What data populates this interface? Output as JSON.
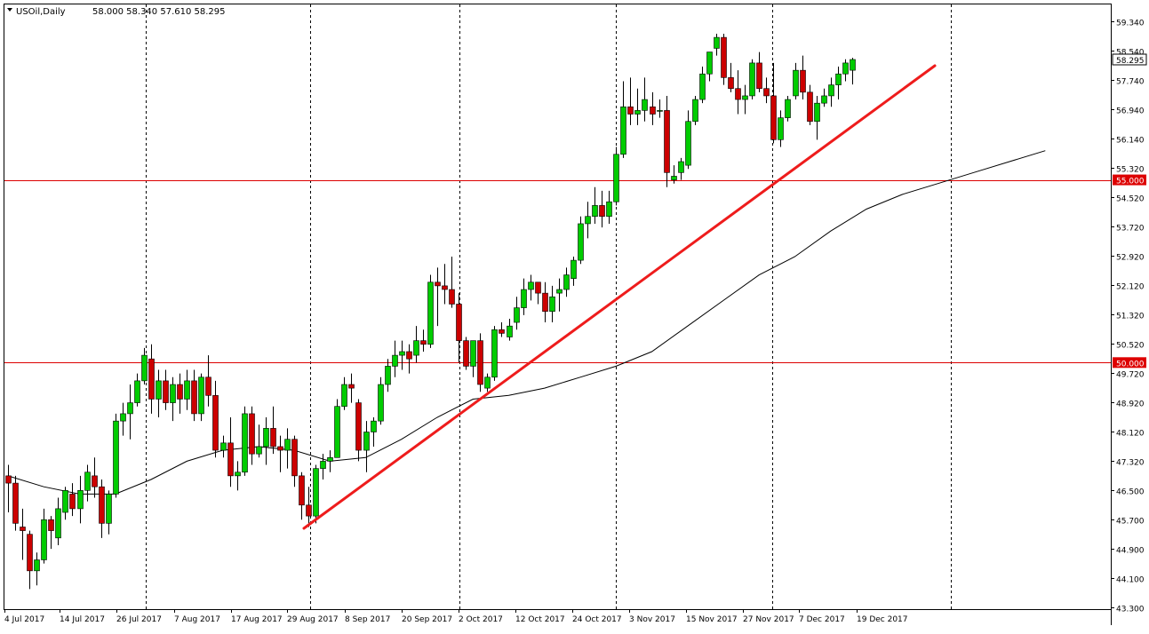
{
  "header": {
    "symbol": "USOil",
    "timeframe": "Daily",
    "ohlc_text": "58.000 58.340 57.610 58.295"
  },
  "colors": {
    "background": "#ffffff",
    "bull_candle": "#00cc00",
    "bear_candle": "#cc0000",
    "wick": "#000000",
    "trendline": "#ee1c1c",
    "horizontal_level": "#dd0000",
    "moving_average": "#000000",
    "axis_text": "#000000",
    "price_tag_bg": "#ffffff",
    "level_tag_bg": "#dd0000",
    "level_tag_text": "#ffffff"
  },
  "chart_data": {
    "type": "candlestick",
    "title": "USOil,Daily",
    "ylim": [
      43.3,
      59.6
    ],
    "y_ticks": [
      "59.340",
      "58.540",
      "57.740",
      "56.940",
      "56.140",
      "55.320",
      "54.520",
      "53.720",
      "52.920",
      "52.120",
      "51.320",
      "50.520",
      "49.720",
      "48.920",
      "48.120",
      "47.320",
      "46.500",
      "45.700",
      "44.900",
      "44.100",
      "43.300"
    ],
    "x_ticks": [
      {
        "label": "4 Jul 2017",
        "bar": 0
      },
      {
        "label": "14 Jul 2017",
        "bar": 10
      },
      {
        "label": "26 Jul 2017",
        "bar": 20
      },
      {
        "label": "7 Aug 2017",
        "bar": 30
      },
      {
        "label": "17 Aug 2017",
        "bar": 40
      },
      {
        "label": "29 Aug 2017",
        "bar": 50
      },
      {
        "label": "8 Sep 2017",
        "bar": 60
      },
      {
        "label": "20 Sep 2017",
        "bar": 70
      },
      {
        "label": "2 Oct 2017",
        "bar": 80
      },
      {
        "label": "12 Oct 2017",
        "bar": 90
      },
      {
        "label": "24 Oct 2017",
        "bar": 100
      },
      {
        "label": "3 Nov 2017",
        "bar": 110
      },
      {
        "label": "15 Nov 2017",
        "bar": 120
      },
      {
        "label": "27 Nov 2017",
        "bar": 130
      },
      {
        "label": "7 Dec 2017",
        "bar": 140
      },
      {
        "label": "19 Dec 2017",
        "bar": 150
      }
    ],
    "period_separators": [
      21,
      44,
      66,
      87,
      109,
      131
    ],
    "candles": [
      [
        46.9,
        47.2,
        45.9,
        46.7
      ],
      [
        46.7,
        46.9,
        45.4,
        45.6
      ],
      [
        45.5,
        46.0,
        44.6,
        45.4
      ],
      [
        45.3,
        45.4,
        43.8,
        44.3
      ],
      [
        44.3,
        44.8,
        43.9,
        44.6
      ],
      [
        44.6,
        46.0,
        44.5,
        45.7
      ],
      [
        45.7,
        45.8,
        44.9,
        45.4
      ],
      [
        45.2,
        46.3,
        45.0,
        46.0
      ],
      [
        45.9,
        46.6,
        45.7,
        46.5
      ],
      [
        46.4,
        46.7,
        45.8,
        46.0
      ],
      [
        46.0,
        46.9,
        45.6,
        46.5
      ],
      [
        46.5,
        47.2,
        46.2,
        47.0
      ],
      [
        46.9,
        47.4,
        46.3,
        46.6
      ],
      [
        46.6,
        46.8,
        45.2,
        45.6
      ],
      [
        45.6,
        46.5,
        45.3,
        46.4
      ],
      [
        46.4,
        48.6,
        46.3,
        48.4
      ],
      [
        48.4,
        48.9,
        48.0,
        48.6
      ],
      [
        48.6,
        49.4,
        47.9,
        48.9
      ],
      [
        48.9,
        49.7,
        48.8,
        49.5
      ],
      [
        49.5,
        50.4,
        49.4,
        50.2
      ],
      [
        50.1,
        50.5,
        48.6,
        49.0
      ],
      [
        49.0,
        49.8,
        48.5,
        49.5
      ],
      [
        49.5,
        49.8,
        48.7,
        48.9
      ],
      [
        48.9,
        49.6,
        48.4,
        49.4
      ],
      [
        49.4,
        49.7,
        48.6,
        49.0
      ],
      [
        49.0,
        49.8,
        48.7,
        49.5
      ],
      [
        49.5,
        49.8,
        48.4,
        48.6
      ],
      [
        48.6,
        49.7,
        48.4,
        49.6
      ],
      [
        49.6,
        50.2,
        48.8,
        49.1
      ],
      [
        49.1,
        49.5,
        47.4,
        47.6
      ],
      [
        47.6,
        48.0,
        47.4,
        47.8
      ],
      [
        47.8,
        48.5,
        46.6,
        46.9
      ],
      [
        46.9,
        47.3,
        46.5,
        47.0
      ],
      [
        47.0,
        48.8,
        46.9,
        48.6
      ],
      [
        48.6,
        48.8,
        47.2,
        47.5
      ],
      [
        47.5,
        48.3,
        47.4,
        47.7
      ],
      [
        47.7,
        48.5,
        47.2,
        48.2
      ],
      [
        48.2,
        48.8,
        47.5,
        47.7
      ],
      [
        47.7,
        48.0,
        47.0,
        47.6
      ],
      [
        47.6,
        48.2,
        47.1,
        47.9
      ],
      [
        47.9,
        48.0,
        46.6,
        46.9
      ],
      [
        46.9,
        47.0,
        45.7,
        46.1
      ],
      [
        46.1,
        46.6,
        45.5,
        45.8
      ],
      [
        45.8,
        47.2,
        45.6,
        47.1
      ],
      [
        47.1,
        47.5,
        46.8,
        47.3
      ],
      [
        47.3,
        47.6,
        47.0,
        47.4
      ],
      [
        47.4,
        49.0,
        47.4,
        48.8
      ],
      [
        48.8,
        49.6,
        48.7,
        49.4
      ],
      [
        49.4,
        49.7,
        48.9,
        49.3
      ],
      [
        48.9,
        49.0,
        47.3,
        47.6
      ],
      [
        47.6,
        48.4,
        47.0,
        48.1
      ],
      [
        48.1,
        48.5,
        47.7,
        48.4
      ],
      [
        48.4,
        49.6,
        48.3,
        49.4
      ],
      [
        49.4,
        50.1,
        49.2,
        49.9
      ],
      [
        49.9,
        50.6,
        49.6,
        50.2
      ],
      [
        50.2,
        50.6,
        49.8,
        50.3
      ],
      [
        50.3,
        50.5,
        49.7,
        50.1
      ],
      [
        50.2,
        51.0,
        50.0,
        50.6
      ],
      [
        50.6,
        50.9,
        50.3,
        50.5
      ],
      [
        50.5,
        52.4,
        50.4,
        52.2
      ],
      [
        52.2,
        52.6,
        51.0,
        52.1
      ],
      [
        52.1,
        52.7,
        51.6,
        52.0
      ],
      [
        52.0,
        52.9,
        51.5,
        51.6
      ],
      [
        51.6,
        51.9,
        50.0,
        50.6
      ],
      [
        50.6,
        50.7,
        49.8,
        49.9
      ],
      [
        49.9,
        50.6,
        49.6,
        50.6
      ],
      [
        50.6,
        50.8,
        49.2,
        49.4
      ],
      [
        49.3,
        49.7,
        49.2,
        49.6
      ],
      [
        49.6,
        51.0,
        49.5,
        50.9
      ],
      [
        50.9,
        51.1,
        50.7,
        50.8
      ],
      [
        50.7,
        51.2,
        50.6,
        51.0
      ],
      [
        51.1,
        51.8,
        50.9,
        51.5
      ],
      [
        51.5,
        52.3,
        51.3,
        52.0
      ],
      [
        52.0,
        52.4,
        51.7,
        52.2
      ],
      [
        52.2,
        52.2,
        51.6,
        51.9
      ],
      [
        51.9,
        52.2,
        51.1,
        51.4
      ],
      [
        51.4,
        52.1,
        51.1,
        51.8
      ],
      [
        51.9,
        52.3,
        51.4,
        52.0
      ],
      [
        52.0,
        52.6,
        51.8,
        52.4
      ],
      [
        52.3,
        52.9,
        52.1,
        52.8
      ],
      [
        52.8,
        54.0,
        52.7,
        53.8
      ],
      [
        53.8,
        54.4,
        53.4,
        54.0
      ],
      [
        54.0,
        54.8,
        53.8,
        54.3
      ],
      [
        54.3,
        54.7,
        53.7,
        54.0
      ],
      [
        54.0,
        54.7,
        53.8,
        54.4
      ],
      [
        54.4,
        55.9,
        54.3,
        55.7
      ],
      [
        55.7,
        57.7,
        55.6,
        57.0
      ],
      [
        57.0,
        57.8,
        56.5,
        56.8
      ],
      [
        56.8,
        57.5,
        56.5,
        56.9
      ],
      [
        56.9,
        57.8,
        56.6,
        57.2
      ],
      [
        57.0,
        57.4,
        56.5,
        56.8
      ],
      [
        56.9,
        57.2,
        56.7,
        56.9
      ],
      [
        56.9,
        57.3,
        54.8,
        55.2
      ],
      [
        55.0,
        55.4,
        54.9,
        55.1
      ],
      [
        55.2,
        55.6,
        55.0,
        55.5
      ],
      [
        55.4,
        56.9,
        55.3,
        56.6
      ],
      [
        56.6,
        57.3,
        56.5,
        57.2
      ],
      [
        57.2,
        58.1,
        57.1,
        57.9
      ],
      [
        57.9,
        58.5,
        57.7,
        58.5
      ],
      [
        58.6,
        59.0,
        58.4,
        58.9
      ],
      [
        58.9,
        59.0,
        57.6,
        57.8
      ],
      [
        57.8,
        58.2,
        57.4,
        57.5
      ],
      [
        57.5,
        58.0,
        56.8,
        57.2
      ],
      [
        57.2,
        57.6,
        56.8,
        57.3
      ],
      [
        57.3,
        58.3,
        57.2,
        58.2
      ],
      [
        58.2,
        58.5,
        57.4,
        57.5
      ],
      [
        57.5,
        57.8,
        57.1,
        57.3
      ],
      [
        57.3,
        58.2,
        56.0,
        56.1
      ],
      [
        56.1,
        56.9,
        55.9,
        56.7
      ],
      [
        56.7,
        57.3,
        56.6,
        57.2
      ],
      [
        57.3,
        58.2,
        57.2,
        58.0
      ],
      [
        58.0,
        58.4,
        57.2,
        57.4
      ],
      [
        57.4,
        57.6,
        56.5,
        56.6
      ],
      [
        56.6,
        57.3,
        56.1,
        57.1
      ],
      [
        57.1,
        57.5,
        57.0,
        57.3
      ],
      [
        57.3,
        57.8,
        57.0,
        57.6
      ],
      [
        57.6,
        58.1,
        57.2,
        57.9
      ],
      [
        57.9,
        58.3,
        57.7,
        58.2
      ],
      [
        58.0,
        58.34,
        57.61,
        58.295
      ]
    ],
    "moving_average": [
      [
        0,
        46.9
      ],
      [
        5,
        46.6
      ],
      [
        10,
        46.4
      ],
      [
        15,
        46.4
      ],
      [
        20,
        46.8
      ],
      [
        25,
        47.3
      ],
      [
        30,
        47.6
      ],
      [
        35,
        47.7
      ],
      [
        40,
        47.6
      ],
      [
        45,
        47.3
      ],
      [
        50,
        47.4
      ],
      [
        55,
        47.9
      ],
      [
        60,
        48.5
      ],
      [
        65,
        49.0
      ],
      [
        70,
        49.1
      ],
      [
        75,
        49.3
      ],
      [
        80,
        49.6
      ],
      [
        85,
        49.9
      ],
      [
        90,
        50.3
      ],
      [
        95,
        51.0
      ],
      [
        100,
        51.7
      ],
      [
        105,
        52.4
      ],
      [
        110,
        52.9
      ],
      [
        115,
        53.6
      ],
      [
        120,
        54.2
      ],
      [
        125,
        54.6
      ],
      [
        130,
        54.9
      ],
      [
        135,
        55.2
      ],
      [
        140,
        55.5
      ],
      [
        145,
        55.8
      ]
    ],
    "trendline": {
      "from": {
        "bar": 42,
        "value": 45.55
      },
      "to": {
        "bar": 158,
        "value": 58.2
      }
    },
    "horizontal_levels": [
      {
        "value": 55.0,
        "label": "55.000"
      },
      {
        "value": 50.0,
        "label": "50.000"
      }
    ],
    "current_price": {
      "value": 58.295,
      "label": "58.295"
    },
    "grid": false
  }
}
